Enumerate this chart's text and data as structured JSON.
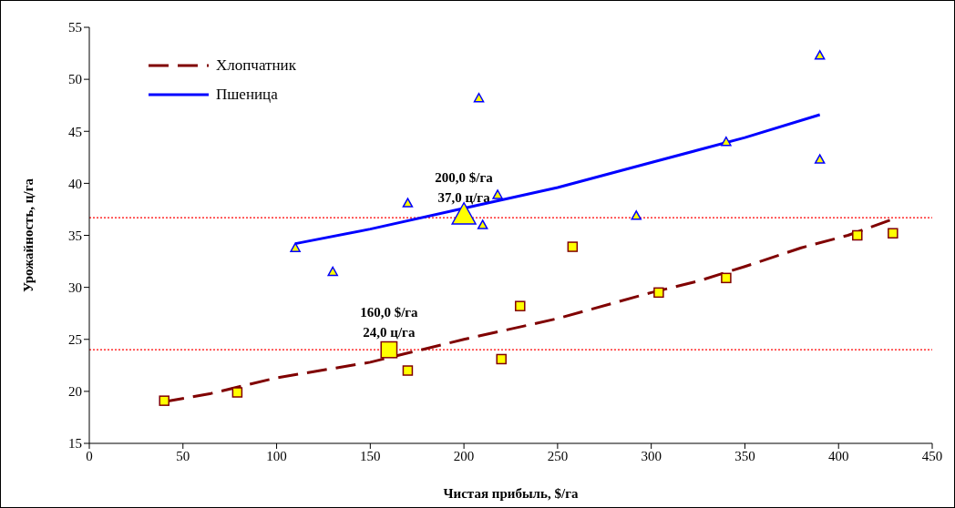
{
  "chart_data": {
    "type": "scatter",
    "xlabel": "Чистая прибыль, $/га",
    "ylabel": "Урожайность, ц/га",
    "xlim": [
      0,
      450
    ],
    "xticks": [
      0,
      50,
      100,
      150,
      200,
      250,
      300,
      350,
      400,
      450
    ],
    "ylim": [
      15,
      55
    ],
    "yticks": [
      15,
      20,
      25,
      30,
      35,
      40,
      45,
      50,
      55
    ],
    "grid": false,
    "legend": "top left",
    "series": [
      {
        "name": "Хлопчатник",
        "type": "line",
        "color": "#800000",
        "line_style": "dashed",
        "marker": "none",
        "x": [
          40,
          65,
          100,
          150,
          200,
          250,
          300,
          325,
          350,
          380,
          405,
          428
        ],
        "values": [
          19,
          19.8,
          21.3,
          22.8,
          25,
          27,
          29.5,
          30.6,
          32,
          33.8,
          35,
          36.5
        ]
      },
      {
        "name": "Пшеница",
        "type": "line",
        "color": "#0000ff",
        "line_style": "solid",
        "marker": "none",
        "x": [
          110,
          150,
          200,
          250,
          300,
          350,
          390
        ],
        "values": [
          34.2,
          35.6,
          37.6,
          39.6,
          42,
          44.4,
          46.6
        ]
      },
      {
        "color": "#0000ff",
        "marker": "triangle",
        "x": [
          110,
          130,
          170,
          208,
          210,
          218,
          292,
          340,
          390,
          390
        ],
        "values": [
          33.8,
          31.5,
          38.1,
          48.2,
          36,
          38.9,
          36.9,
          44,
          52.3,
          42.3
        ]
      },
      {
        "color": "#800000",
        "marker": "square",
        "x": [
          40,
          79,
          170,
          220,
          230,
          258,
          304,
          340,
          410,
          429
        ],
        "values": [
          19.1,
          19.9,
          22,
          23.1,
          28.2,
          33.9,
          29.5,
          30.9,
          35,
          35.2
        ]
      },
      {
        "type": "bubble",
        "color": "#0000ff",
        "marker": "triangle",
        "x": [
          200
        ],
        "values": [
          37
        ],
        "sizes": [
          1
        ]
      },
      {
        "type": "bubble",
        "color": "#800000",
        "marker": "square",
        "x": [
          160
        ],
        "values": [
          24
        ],
        "sizes": [
          1
        ]
      }
    ],
    "ref_lines": [
      {
        "axis": "y",
        "value": 36.7,
        "color": "#ff0000",
        "line_style": "dotted"
      },
      {
        "axis": "y",
        "value": 24,
        "color": "#ff0000",
        "line_style": "dotted"
      }
    ],
    "annotations": [
      {
        "text": "200,0 $/га\n37,0 ц/га",
        "x": 200,
        "y": 37
      },
      {
        "text": "160,0 $/га\n24,0 ц/га",
        "x": 160,
        "y": 24
      }
    ]
  }
}
